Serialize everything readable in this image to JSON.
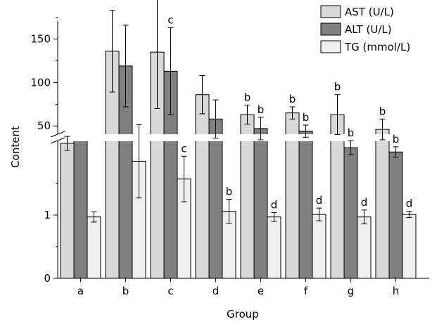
{
  "chart_data": {
    "type": "bar",
    "title": "",
    "xlabel": "Group",
    "ylabel": "Content",
    "categories": [
      "a",
      "b",
      "c",
      "d",
      "e",
      "f",
      "g",
      "h"
    ],
    "series": [
      {
        "name": "AST (U/L)",
        "color": "#d9d9d9",
        "values": [
          30,
          136,
          135,
          86,
          63,
          65,
          63,
          46
        ],
        "errors": [
          8,
          47,
          65,
          22,
          11,
          7,
          23,
          12
        ],
        "labels": [
          "",
          "",
          "c",
          "",
          "b",
          "b",
          "b",
          "b"
        ]
      },
      {
        "name": "ALT (U/L)",
        "color": "#808080",
        "values": [
          null,
          119,
          113,
          58,
          47,
          44,
          25,
          20
        ],
        "errors": [
          null,
          47,
          50,
          22,
          13,
          7,
          8,
          6
        ],
        "labels": [
          "",
          "",
          "c",
          "",
          "b",
          "b",
          "b",
          "b"
        ]
      },
      {
        "name": "TG (mmol/L)",
        "color": "#f0f0f0",
        "values": [
          0.97,
          1.85,
          1.57,
          1.06,
          0.97,
          1.01,
          0.97,
          1.01
        ],
        "errors": [
          0.08,
          0.58,
          0.36,
          0.19,
          0.07,
          0.1,
          0.11,
          0.05
        ],
        "labels": [
          "",
          "",
          "c",
          "b",
          "d",
          "d",
          "d",
          "d"
        ]
      }
    ],
    "axes": {
      "upper_ylim": [
        0,
        225
      ],
      "upper_yticks": [
        50,
        100,
        150,
        200
      ],
      "lower_ylim": [
        0,
        2.0
      ],
      "lower_yticks": [
        0,
        1
      ]
    },
    "axis_break": true,
    "legend_position": "top-right",
    "grid": false
  }
}
